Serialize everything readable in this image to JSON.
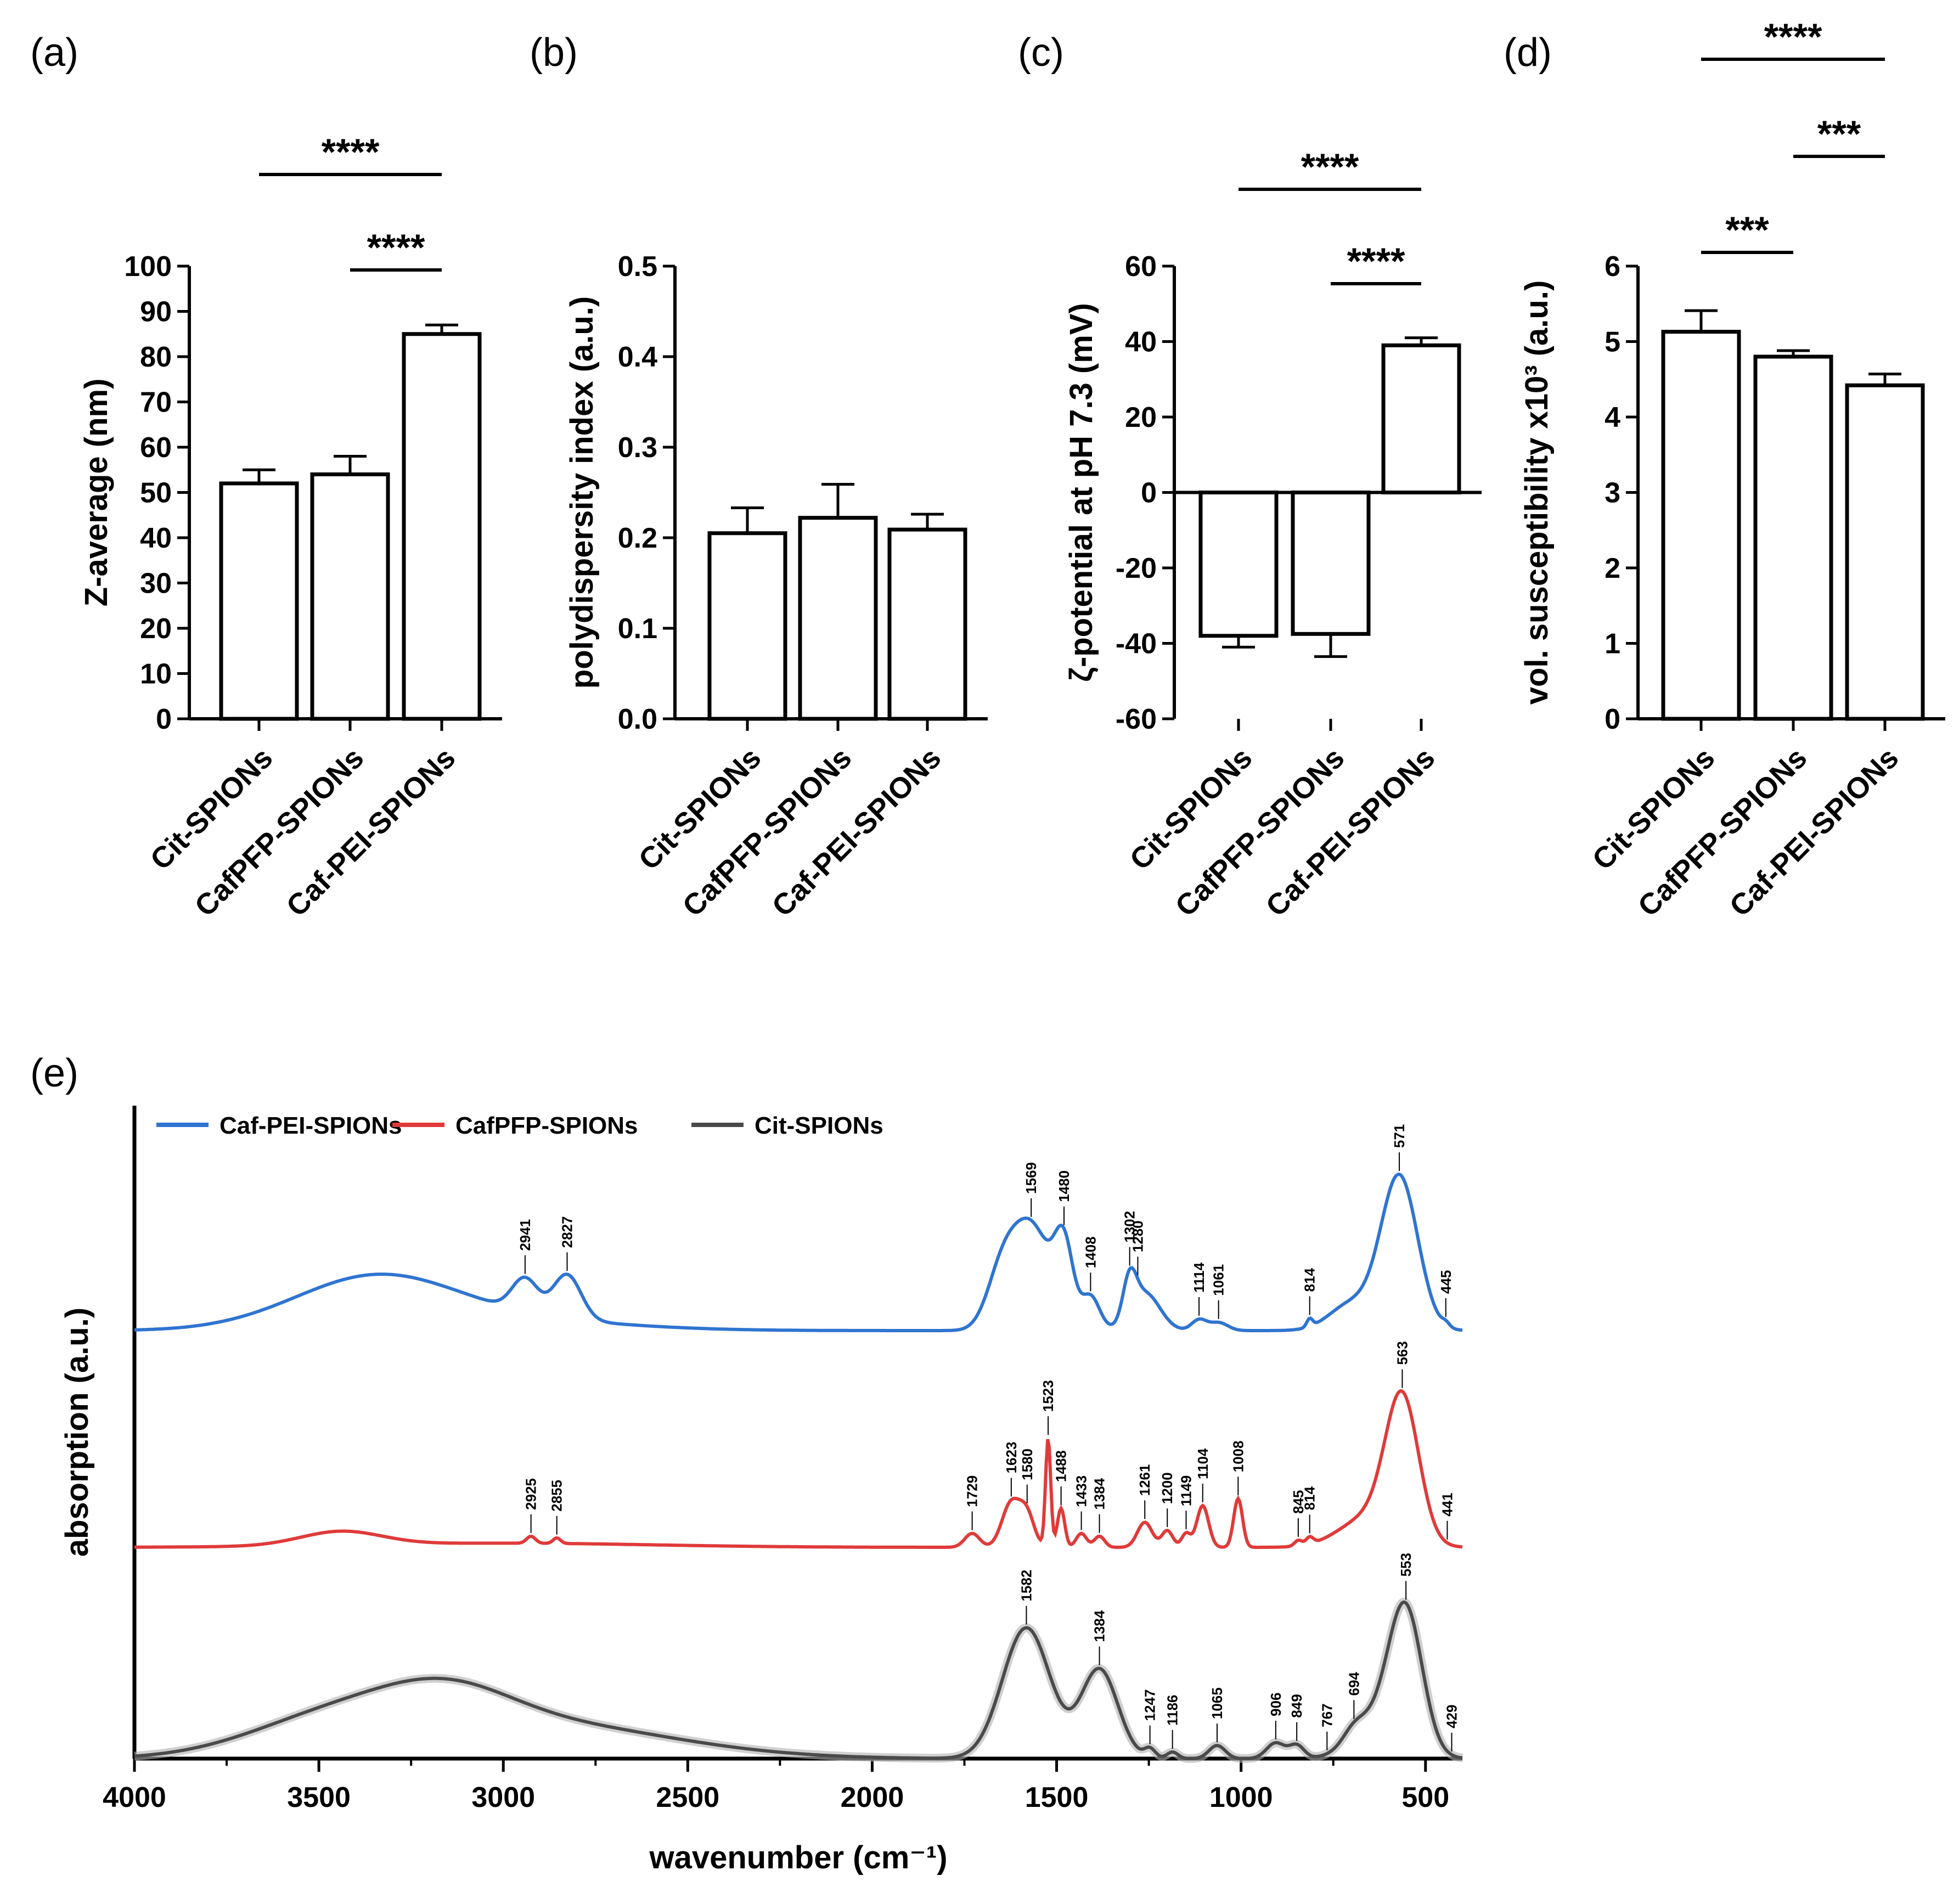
{
  "chart_data": [
    {
      "panel": "(a)",
      "type": "bar",
      "categories": [
        "Cit-SPIONs",
        "CafPFP-SPIONs",
        "Caf-PEI-SPIONs"
      ],
      "values": [
        52,
        54,
        85
      ],
      "errors": [
        3,
        4,
        2
      ],
      "ylabel": "Z-average (nm)",
      "ylim": [
        0,
        100
      ],
      "yticks": [
        "0",
        "10",
        "20",
        "30",
        "40",
        "50",
        "60",
        "70",
        "80",
        "90",
        "100"
      ],
      "significance": [
        {
          "from": 0,
          "to": 2,
          "label": "****"
        },
        {
          "from": 1,
          "to": 2,
          "label": "****"
        }
      ]
    },
    {
      "panel": "(b)",
      "type": "bar",
      "categories": [
        "Cit-SPIONs",
        "CafPFP-SPIONs",
        "Caf-PEI-SPIONs"
      ],
      "values": [
        0.205,
        0.222,
        0.209
      ],
      "errors": [
        0.028,
        0.037,
        0.017
      ],
      "ylabel": "polydispersity index (a.u.)",
      "ylim": [
        0,
        0.5
      ],
      "yticks": [
        "0.0",
        "0.1",
        "0.2",
        "0.3",
        "0.4",
        "0.5"
      ],
      "significance": []
    },
    {
      "panel": "(c)",
      "type": "bar",
      "categories": [
        "Cit-SPIONs",
        "CafPFP-SPIONs",
        "Caf-PEI-SPIONs"
      ],
      "values": [
        -38,
        -37.5,
        39
      ],
      "errors": [
        3,
        6,
        2
      ],
      "ylabel": "ζ-potential at pH 7.3 (mV)",
      "ylim": [
        -60,
        60
      ],
      "yticks": [
        "-60",
        "-40",
        "-20",
        "0",
        "20",
        "40",
        "60"
      ],
      "significance": [
        {
          "from": 0,
          "to": 2,
          "label": "****"
        },
        {
          "from": 1,
          "to": 2,
          "label": "****"
        }
      ]
    },
    {
      "panel": "(d)",
      "type": "bar",
      "categories": [
        "Cit-SPIONs",
        "CafPFP-SPIONs",
        "Caf-PEI-SPIONs"
      ],
      "values": [
        5.13,
        4.8,
        4.42
      ],
      "errors": [
        0.28,
        0.08,
        0.15
      ],
      "ylabel": "vol. susceptibility x10³ (a.u.)",
      "ylim": [
        0,
        6
      ],
      "yticks": [
        "0",
        "1",
        "2",
        "3",
        "4",
        "5",
        "6"
      ],
      "significance": [
        {
          "from": 0,
          "to": 2,
          "label": "****"
        },
        {
          "from": 1,
          "to": 2,
          "label": "***"
        },
        {
          "from": 0,
          "to": 1,
          "label": "***"
        }
      ]
    },
    {
      "panel": "(e)",
      "type": "line",
      "xlabel": "wavenumber (cm⁻¹)",
      "ylabel": "absorption (a.u.)",
      "xlim": [
        4000,
        400
      ],
      "xticks": [
        "4000",
        "3500",
        "3000",
        "2500",
        "2000",
        "1500",
        "1000",
        "500"
      ],
      "series": [
        {
          "name": "Cit-SPIONs",
          "color": "#4a4a4a",
          "peaks": [
            "1582",
            "1384",
            "1247",
            "1186",
            "1065",
            "906",
            "849",
            "767",
            "694",
            "553",
            "429"
          ],
          "offset": 0,
          "scale": 0.74
        },
        {
          "name": "CafPFP-SPIONs",
          "color": "#e03a3a",
          "peaks": [
            "2925",
            "2855",
            "1729",
            "1623",
            "1580",
            "1523",
            "1488",
            "1433",
            "1384",
            "1261",
            "1200",
            "1149",
            "1104",
            "1008",
            "845",
            "814",
            "563",
            "441"
          ],
          "offset": 1,
          "scale": 0.74
        },
        {
          "name": "Caf-PEI-SPIONs",
          "color": "#2f74d0",
          "peaks": [
            "2941",
            "2827",
            "1569",
            "1480",
            "1408",
            "1302",
            "1280",
            "1114",
            "1061",
            "814",
            "571",
            "445"
          ],
          "offset": 2,
          "scale": 0.74
        }
      ]
    }
  ]
}
